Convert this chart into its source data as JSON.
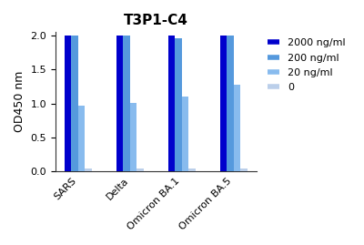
{
  "title": "T3P1-C4",
  "ylabel": "OD450 nm",
  "categories": [
    "SARS",
    "Delta",
    "Omicron BA.1",
    "Omicron BA.5"
  ],
  "series": [
    {
      "label": "2000 ng/ml",
      "color": "#0000CC",
      "values": [
        2.0,
        2.0,
        2.0,
        2.0
      ]
    },
    {
      "label": "200 ng/ml",
      "color": "#5599DD",
      "values": [
        2.0,
        2.0,
        1.96,
        2.0
      ]
    },
    {
      "label": "20 ng/ml",
      "color": "#88BBEE",
      "values": [
        0.97,
        1.01,
        1.1,
        1.28
      ]
    },
    {
      "label": "0",
      "color": "#BBCFEA",
      "values": [
        0.04,
        0.04,
        0.04,
        0.04
      ]
    }
  ],
  "ylim": [
    0,
    2.05
  ],
  "yticks": [
    0.0,
    0.5,
    1.0,
    1.5,
    2.0
  ],
  "title_fontsize": 11,
  "axis_label_fontsize": 9,
  "tick_fontsize": 8,
  "legend_fontsize": 8,
  "bar_width": 0.13,
  "bar_gap": 0.0,
  "background_color": "#ffffff",
  "spine_color": "#333333"
}
